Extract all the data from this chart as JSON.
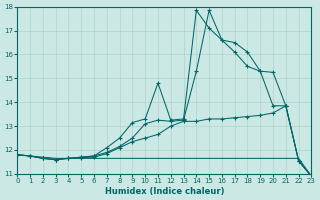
{
  "xlabel": "Humidex (Indice chaleur)",
  "bg_color": "#cce8e4",
  "grid_color": "#aad4cc",
  "line_color": "#006666",
  "xlim": [
    0,
    23
  ],
  "ylim": [
    11,
    18
  ],
  "xticks": [
    0,
    1,
    2,
    3,
    4,
    5,
    6,
    7,
    8,
    9,
    10,
    11,
    12,
    13,
    14,
    15,
    16,
    17,
    18,
    19,
    20,
    21,
    22,
    23
  ],
  "yticks": [
    11,
    12,
    13,
    14,
    15,
    16,
    17,
    18
  ],
  "lines": [
    {
      "x": [
        0,
        1,
        2,
        3,
        4,
        5,
        6,
        7,
        8,
        9,
        10,
        11,
        12,
        13,
        14,
        15,
        16,
        17,
        18,
        19,
        20,
        21,
        22,
        23
      ],
      "y": [
        11.8,
        11.75,
        11.7,
        11.65,
        11.65,
        11.65,
        11.65,
        11.65,
        11.65,
        11.65,
        11.65,
        11.65,
        11.65,
        11.65,
        11.65,
        11.65,
        11.65,
        11.65,
        11.65,
        11.65,
        11.65,
        11.65,
        11.65,
        10.9
      ],
      "marker": false
    },
    {
      "x": [
        0,
        1,
        2,
        3,
        4,
        5,
        6,
        7,
        8,
        9,
        10,
        11,
        12,
        13,
        14,
        15,
        16,
        17,
        18,
        19,
        20,
        21,
        22,
        23
      ],
      "y": [
        11.8,
        11.75,
        11.65,
        11.6,
        11.65,
        11.68,
        11.7,
        11.85,
        12.1,
        12.35,
        12.5,
        12.65,
        13.0,
        13.2,
        13.2,
        13.3,
        13.3,
        13.35,
        13.4,
        13.45,
        13.55,
        13.85,
        11.55,
        10.9
      ],
      "marker": true
    },
    {
      "x": [
        0,
        1,
        2,
        3,
        4,
        5,
        6,
        7,
        8,
        9,
        10,
        11,
        12,
        13,
        14,
        15,
        16,
        17,
        18,
        19,
        20,
        21,
        22,
        23
      ],
      "y": [
        11.8,
        11.75,
        11.65,
        11.6,
        11.65,
        11.7,
        11.75,
        11.9,
        12.15,
        12.5,
        13.1,
        13.25,
        13.2,
        13.25,
        15.3,
        17.85,
        16.6,
        16.1,
        15.5,
        15.3,
        15.25,
        13.85,
        11.55,
        10.9
      ],
      "marker": true
    },
    {
      "x": [
        0,
        1,
        2,
        3,
        4,
        5,
        6,
        7,
        8,
        9,
        10,
        11,
        12,
        13,
        14,
        15,
        16,
        17,
        18,
        19,
        20,
        21,
        22,
        23
      ],
      "y": [
        11.8,
        11.75,
        11.65,
        11.6,
        11.65,
        11.7,
        11.75,
        12.1,
        12.5,
        13.15,
        13.3,
        14.8,
        13.25,
        13.3,
        17.85,
        17.1,
        16.6,
        16.5,
        16.1,
        15.3,
        13.85,
        13.85,
        11.55,
        10.9
      ],
      "marker": true
    }
  ]
}
